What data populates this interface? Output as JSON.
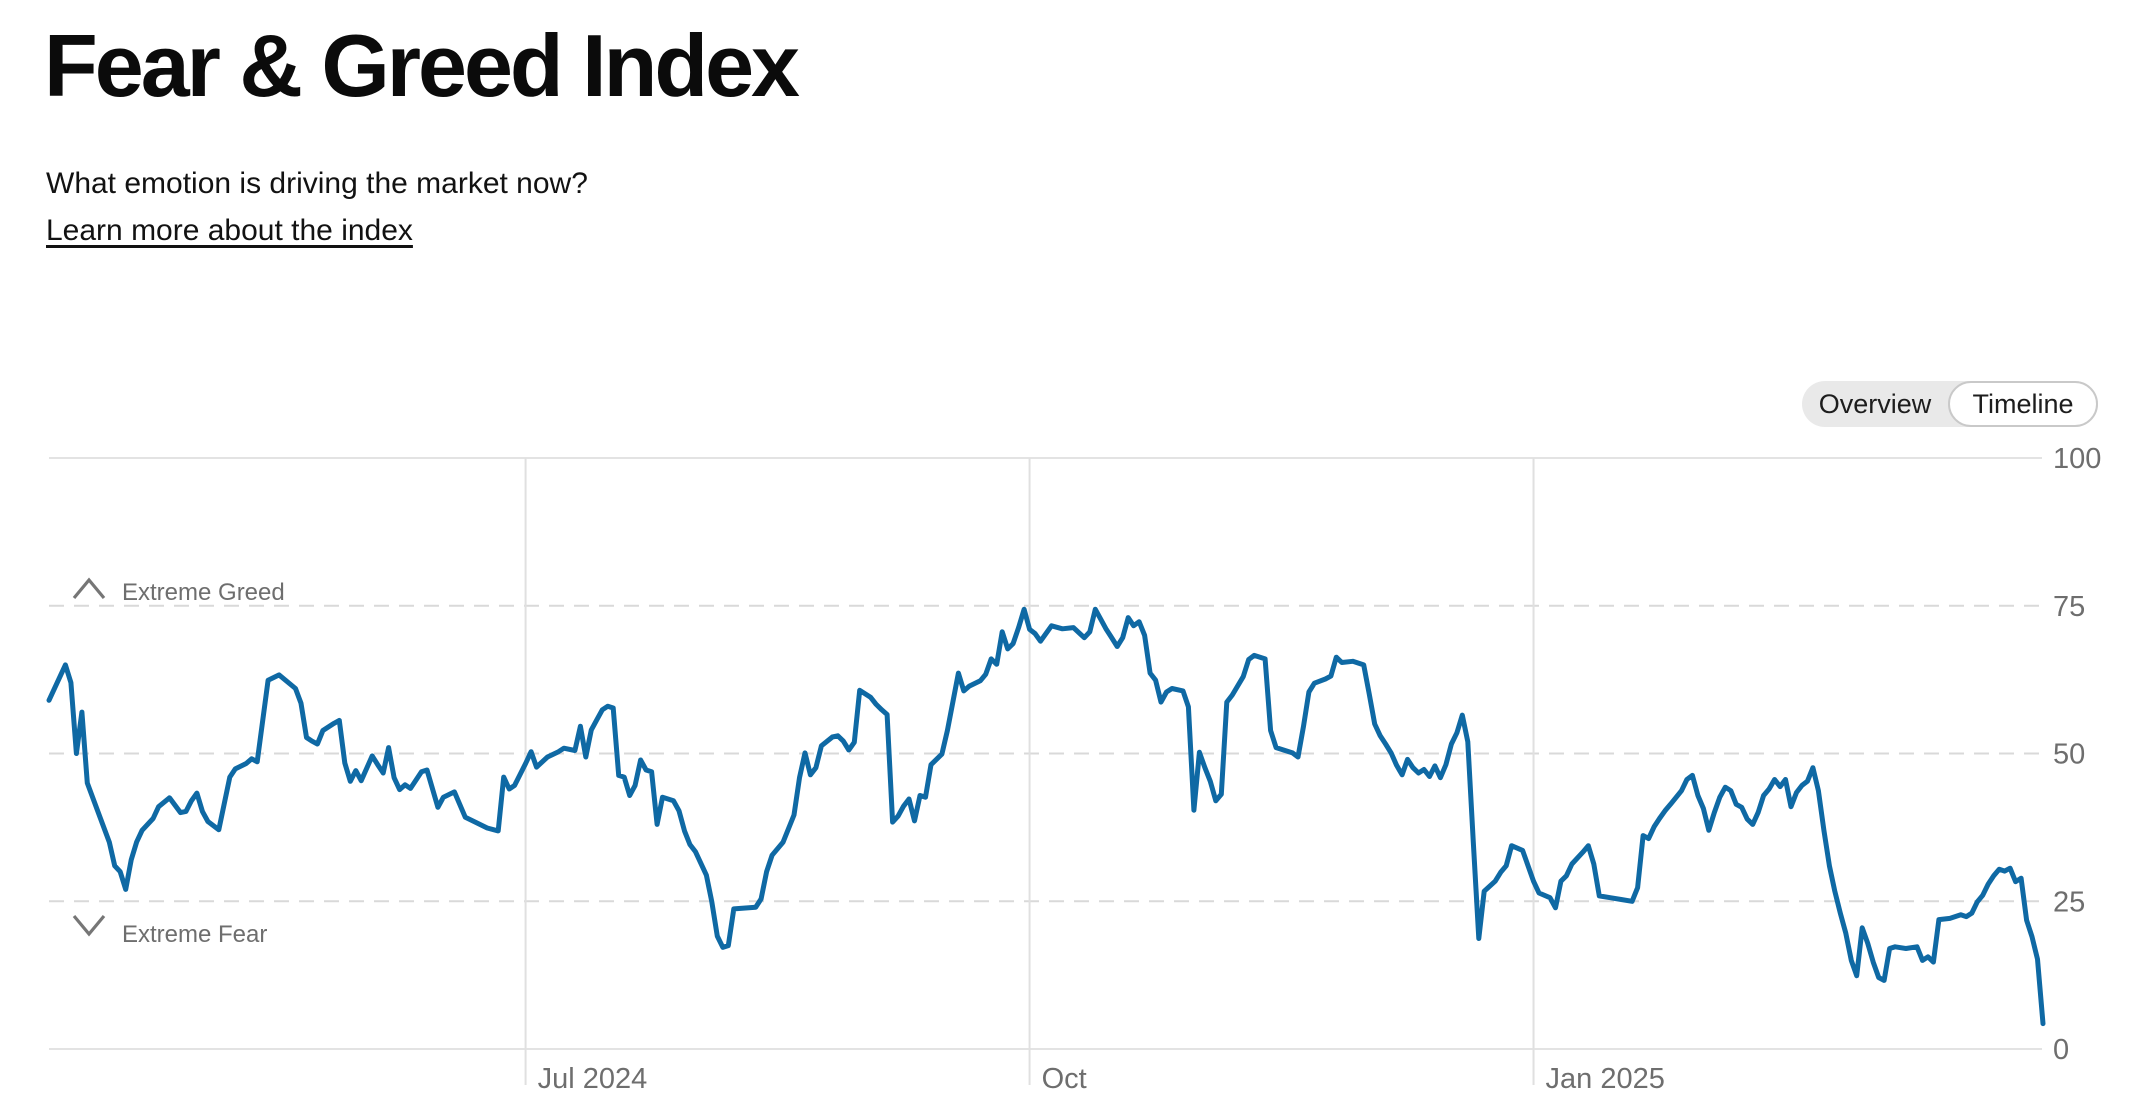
{
  "page": {
    "title": "Fear & Greed Index",
    "subtitle": "What emotion is driving the market now?",
    "link_label": "Learn more about the index"
  },
  "view_toggle": {
    "options": [
      "Overview",
      "Timeline"
    ],
    "selected": "Timeline"
  },
  "colors": {
    "line": "#0F69A4",
    "grid_solid": "#e3e3e3",
    "grid_vertical": "#e0e0e0",
    "grid_dashed": "#d9d9d9",
    "axis_text": "#6e6e6e",
    "zone_icon": "#767676",
    "toggle_bg": "#e9e9e9",
    "toggle_selected_border": "#c9c9c9"
  },
  "chart_data": {
    "type": "line",
    "title": "Fear & Greed Index over time",
    "series_name": "Fear & Greed Index",
    "xlim": [
      "2024-04-05",
      "2025-04-04"
    ],
    "ylim": [
      0,
      100
    ],
    "yticks": [
      0,
      25,
      50,
      75,
      100
    ],
    "xticks": [
      {
        "date": "2024-07-01",
        "label": "Jul 2024"
      },
      {
        "date": "2024-10-01",
        "label": "Oct"
      },
      {
        "date": "2025-01-01",
        "label": "Jan 2025"
      }
    ],
    "zones": {
      "upper": {
        "label": "Extreme Greed",
        "threshold": 75
      },
      "lower": {
        "label": "Extreme Fear",
        "threshold": 25
      }
    },
    "grid": {
      "horizontal_dashed": [
        25,
        50,
        75
      ],
      "horizontal_solid": [
        0,
        100
      ],
      "legend": "none"
    },
    "points": [
      [
        "2024-04-05",
        59
      ],
      [
        "2024-04-08",
        65
      ],
      [
        "2024-04-09",
        62
      ],
      [
        "2024-04-10",
        50
      ],
      [
        "2024-04-11",
        57
      ],
      [
        "2024-04-12",
        45
      ],
      [
        "2024-04-14",
        40
      ],
      [
        "2024-04-16",
        35
      ],
      [
        "2024-04-17",
        31
      ],
      [
        "2024-04-18",
        30
      ],
      [
        "2024-04-19",
        27
      ],
      [
        "2024-04-20",
        32
      ],
      [
        "2024-04-21",
        35
      ],
      [
        "2024-04-22",
        37
      ],
      [
        "2024-04-24",
        39
      ],
      [
        "2024-04-25",
        41
      ],
      [
        "2024-04-27",
        42.5
      ],
      [
        "2024-04-29",
        40
      ],
      [
        "2024-04-30",
        40.2
      ],
      [
        "2024-05-01",
        42
      ],
      [
        "2024-05-02",
        43.3
      ],
      [
        "2024-05-03",
        40.2
      ],
      [
        "2024-05-04",
        38.5
      ],
      [
        "2024-05-06",
        37.1
      ],
      [
        "2024-05-08",
        46
      ],
      [
        "2024-05-09",
        47.4
      ],
      [
        "2024-05-11",
        48.3
      ],
      [
        "2024-05-12",
        49.1
      ],
      [
        "2024-05-13",
        48.6
      ],
      [
        "2024-05-15",
        62.4
      ],
      [
        "2024-05-17",
        63.3
      ],
      [
        "2024-05-20",
        61
      ],
      [
        "2024-05-21",
        58.5
      ],
      [
        "2024-05-22",
        52.7
      ],
      [
        "2024-05-23",
        52.1
      ],
      [
        "2024-05-24",
        51.6
      ],
      [
        "2024-05-25",
        53.9
      ],
      [
        "2024-05-27",
        55.1
      ],
      [
        "2024-05-28",
        55.6
      ],
      [
        "2024-05-29",
        48.4
      ],
      [
        "2024-05-30",
        45.3
      ],
      [
        "2024-05-31",
        47.1
      ],
      [
        "2024-06-01",
        45.4
      ],
      [
        "2024-06-03",
        49.6
      ],
      [
        "2024-06-04",
        48.1
      ],
      [
        "2024-06-05",
        46.7
      ],
      [
        "2024-06-06",
        51
      ],
      [
        "2024-06-07",
        45.9
      ],
      [
        "2024-06-08",
        43.9
      ],
      [
        "2024-06-09",
        44.7
      ],
      [
        "2024-06-10",
        44.1
      ],
      [
        "2024-06-12",
        46.9
      ],
      [
        "2024-06-13",
        47.2
      ],
      [
        "2024-06-15",
        40.9
      ],
      [
        "2024-06-16",
        42.6
      ],
      [
        "2024-06-18",
        43.5
      ],
      [
        "2024-06-20",
        39.2
      ],
      [
        "2024-06-22",
        38.3
      ],
      [
        "2024-06-24",
        37.4
      ],
      [
        "2024-06-26",
        36.9
      ],
      [
        "2024-06-27",
        46
      ],
      [
        "2024-06-28",
        44
      ],
      [
        "2024-06-29",
        44.6
      ],
      [
        "2024-07-01",
        48.3
      ],
      [
        "2024-07-02",
        50.3
      ],
      [
        "2024-07-03",
        47.7
      ],
      [
        "2024-07-05",
        49.4
      ],
      [
        "2024-07-07",
        50.3
      ],
      [
        "2024-07-08",
        50.9
      ],
      [
        "2024-07-10",
        50.5
      ],
      [
        "2024-07-11",
        54.6
      ],
      [
        "2024-07-12",
        49.4
      ],
      [
        "2024-07-13",
        54
      ],
      [
        "2024-07-14",
        55.7
      ],
      [
        "2024-07-15",
        57.4
      ],
      [
        "2024-07-16",
        58
      ],
      [
        "2024-07-17",
        57.7
      ],
      [
        "2024-07-18",
        46.3
      ],
      [
        "2024-07-19",
        46
      ],
      [
        "2024-07-20",
        42.9
      ],
      [
        "2024-07-21",
        44.6
      ],
      [
        "2024-07-22",
        48.9
      ],
      [
        "2024-07-23",
        47.2
      ],
      [
        "2024-07-24",
        46.9
      ],
      [
        "2024-07-25",
        38
      ],
      [
        "2024-07-26",
        42.6
      ],
      [
        "2024-07-28",
        42
      ],
      [
        "2024-07-29",
        40.3
      ],
      [
        "2024-07-30",
        36.9
      ],
      [
        "2024-07-31",
        34.6
      ],
      [
        "2024-08-01",
        33.4
      ],
      [
        "2024-08-03",
        29.4
      ],
      [
        "2024-08-04",
        24.9
      ],
      [
        "2024-08-05",
        19.1
      ],
      [
        "2024-08-06",
        17.2
      ],
      [
        "2024-08-07",
        17.5
      ],
      [
        "2024-08-08",
        23.7
      ],
      [
        "2024-08-12",
        24
      ],
      [
        "2024-08-13",
        25.4
      ],
      [
        "2024-08-14",
        30
      ],
      [
        "2024-08-15",
        32.8
      ],
      [
        "2024-08-17",
        35
      ],
      [
        "2024-08-19",
        39.6
      ],
      [
        "2024-08-20",
        45.9
      ],
      [
        "2024-08-21",
        50.1
      ],
      [
        "2024-08-22",
        46.4
      ],
      [
        "2024-08-23",
        47.6
      ],
      [
        "2024-08-24",
        51.3
      ],
      [
        "2024-08-26",
        52.8
      ],
      [
        "2024-08-27",
        53
      ],
      [
        "2024-08-28",
        52.1
      ],
      [
        "2024-08-29",
        50.6
      ],
      [
        "2024-08-30",
        51.9
      ],
      [
        "2024-08-31",
        60.7
      ],
      [
        "2024-09-02",
        59.5
      ],
      [
        "2024-09-03",
        58.3
      ],
      [
        "2024-09-04",
        57.4
      ],
      [
        "2024-09-05",
        56.6
      ],
      [
        "2024-09-06",
        38.4
      ],
      [
        "2024-09-07",
        39.4
      ],
      [
        "2024-09-08",
        41.1
      ],
      [
        "2024-09-09",
        42.3
      ],
      [
        "2024-09-10",
        38.6
      ],
      [
        "2024-09-11",
        42.9
      ],
      [
        "2024-09-12",
        42.6
      ],
      [
        "2024-09-13",
        48.1
      ],
      [
        "2024-09-15",
        49.9
      ],
      [
        "2024-09-16",
        53.9
      ],
      [
        "2024-09-18",
        63.6
      ],
      [
        "2024-09-19",
        60.6
      ],
      [
        "2024-09-20",
        61.4
      ],
      [
        "2024-09-22",
        62.3
      ],
      [
        "2024-09-23",
        63.4
      ],
      [
        "2024-09-24",
        66
      ],
      [
        "2024-09-25",
        65.1
      ],
      [
        "2024-09-26",
        70.6
      ],
      [
        "2024-09-27",
        67.7
      ],
      [
        "2024-09-28",
        68.6
      ],
      [
        "2024-09-29",
        71.3
      ],
      [
        "2024-09-30",
        74.4
      ],
      [
        "2024-10-01",
        71
      ],
      [
        "2024-10-02",
        70.3
      ],
      [
        "2024-10-03",
        69
      ],
      [
        "2024-10-05",
        71.6
      ],
      [
        "2024-10-07",
        71.1
      ],
      [
        "2024-10-09",
        71.3
      ],
      [
        "2024-10-11",
        69.6
      ],
      [
        "2024-10-12",
        70.6
      ],
      [
        "2024-10-13",
        74.4
      ],
      [
        "2024-10-14",
        72.7
      ],
      [
        "2024-10-15",
        71
      ],
      [
        "2024-10-16",
        69.6
      ],
      [
        "2024-10-17",
        68.1
      ],
      [
        "2024-10-18",
        69.6
      ],
      [
        "2024-10-19",
        73
      ],
      [
        "2024-10-20",
        71.6
      ],
      [
        "2024-10-21",
        72.3
      ],
      [
        "2024-10-22",
        70
      ],
      [
        "2024-10-23",
        63.6
      ],
      [
        "2024-10-24",
        62.4
      ],
      [
        "2024-10-25",
        58.7
      ],
      [
        "2024-10-26",
        60.4
      ],
      [
        "2024-10-27",
        61
      ],
      [
        "2024-10-29",
        60.6
      ],
      [
        "2024-10-30",
        57.9
      ],
      [
        "2024-10-31",
        40.4
      ],
      [
        "2024-11-01",
        50.2
      ],
      [
        "2024-11-02",
        47.6
      ],
      [
        "2024-11-03",
        45.3
      ],
      [
        "2024-11-04",
        42
      ],
      [
        "2024-11-05",
        43.1
      ],
      [
        "2024-11-06",
        58.7
      ],
      [
        "2024-11-07",
        59.9
      ],
      [
        "2024-11-09",
        63
      ],
      [
        "2024-11-10",
        65.9
      ],
      [
        "2024-11-11",
        66.6
      ],
      [
        "2024-11-13",
        66
      ],
      [
        "2024-11-14",
        53.9
      ],
      [
        "2024-11-15",
        51
      ],
      [
        "2024-11-16",
        50.7
      ],
      [
        "2024-11-18",
        50.1
      ],
      [
        "2024-11-19",
        49.4
      ],
      [
        "2024-11-20",
        54.6
      ],
      [
        "2024-11-21",
        60.4
      ],
      [
        "2024-11-22",
        61.9
      ],
      [
        "2024-11-24",
        62.6
      ],
      [
        "2024-11-25",
        63.1
      ],
      [
        "2024-11-26",
        66.3
      ],
      [
        "2024-11-27",
        65.4
      ],
      [
        "2024-11-29",
        65.6
      ],
      [
        "2024-12-01",
        65
      ],
      [
        "2024-12-02",
        60.1
      ],
      [
        "2024-12-03",
        55
      ],
      [
        "2024-12-04",
        53
      ],
      [
        "2024-12-05",
        51.6
      ],
      [
        "2024-12-06",
        50.1
      ],
      [
        "2024-12-07",
        48
      ],
      [
        "2024-12-08",
        46.4
      ],
      [
        "2024-12-09",
        49
      ],
      [
        "2024-12-10",
        47.6
      ],
      [
        "2024-12-11",
        46.7
      ],
      [
        "2024-12-12",
        47.3
      ],
      [
        "2024-12-13",
        46.1
      ],
      [
        "2024-12-14",
        47.9
      ],
      [
        "2024-12-15",
        45.9
      ],
      [
        "2024-12-16",
        48.1
      ],
      [
        "2024-12-17",
        51.6
      ],
      [
        "2024-12-18",
        53.5
      ],
      [
        "2024-12-19",
        56.5
      ],
      [
        "2024-12-20",
        52
      ],
      [
        "2024-12-21",
        35
      ],
      [
        "2024-12-22",
        18.7
      ],
      [
        "2024-12-23",
        26.7
      ],
      [
        "2024-12-25",
        28.4
      ],
      [
        "2024-12-26",
        29.9
      ],
      [
        "2024-12-27",
        31
      ],
      [
        "2024-12-28",
        34.4
      ],
      [
        "2024-12-30",
        33.6
      ],
      [
        "2025-01-01",
        28.4
      ],
      [
        "2025-01-02",
        26.4
      ],
      [
        "2025-01-04",
        25.6
      ],
      [
        "2025-01-05",
        23.9
      ],
      [
        "2025-01-06",
        28.4
      ],
      [
        "2025-01-07",
        29.3
      ],
      [
        "2025-01-08",
        31.3
      ],
      [
        "2025-01-10",
        33.3
      ],
      [
        "2025-01-11",
        34.4
      ],
      [
        "2025-01-12",
        31.3
      ],
      [
        "2025-01-13",
        25.9
      ],
      [
        "2025-01-15",
        25.6
      ],
      [
        "2025-01-17",
        25.3
      ],
      [
        "2025-01-19",
        25
      ],
      [
        "2025-01-20",
        27.3
      ],
      [
        "2025-01-21",
        36.1
      ],
      [
        "2025-01-22",
        35.6
      ],
      [
        "2025-01-23",
        37.6
      ],
      [
        "2025-01-24",
        39
      ],
      [
        "2025-01-25",
        40.3
      ],
      [
        "2025-01-26",
        41.4
      ],
      [
        "2025-01-28",
        43.7
      ],
      [
        "2025-01-29",
        45.6
      ],
      [
        "2025-01-30",
        46.3
      ],
      [
        "2025-01-31",
        42.9
      ],
      [
        "2025-02-01",
        40.7
      ],
      [
        "2025-02-02",
        37
      ],
      [
        "2025-02-03",
        40
      ],
      [
        "2025-02-04",
        42.6
      ],
      [
        "2025-02-05",
        44.3
      ],
      [
        "2025-02-06",
        43.7
      ],
      [
        "2025-02-07",
        41.4
      ],
      [
        "2025-02-08",
        40.9
      ],
      [
        "2025-02-09",
        38.9
      ],
      [
        "2025-02-10",
        38
      ],
      [
        "2025-02-11",
        40
      ],
      [
        "2025-02-12",
        42.9
      ],
      [
        "2025-02-13",
        44
      ],
      [
        "2025-02-14",
        45.6
      ],
      [
        "2025-02-15",
        44.4
      ],
      [
        "2025-02-16",
        45.6
      ],
      [
        "2025-02-17",
        41
      ],
      [
        "2025-02-18",
        43.4
      ],
      [
        "2025-02-19",
        44.6
      ],
      [
        "2025-02-20",
        45.3
      ],
      [
        "2025-02-21",
        47.6
      ],
      [
        "2025-02-22",
        43.7
      ],
      [
        "2025-02-23",
        37
      ],
      [
        "2025-02-24",
        31
      ],
      [
        "2025-02-25",
        26.7
      ],
      [
        "2025-02-26",
        23
      ],
      [
        "2025-02-27",
        19.6
      ],
      [
        "2025-02-28",
        15
      ],
      [
        "2025-03-01",
        12.4
      ],
      [
        "2025-03-02",
        20.5
      ],
      [
        "2025-03-03",
        17.9
      ],
      [
        "2025-03-04",
        14.7
      ],
      [
        "2025-03-05",
        12.1
      ],
      [
        "2025-03-06",
        11.6
      ],
      [
        "2025-03-07",
        17
      ],
      [
        "2025-03-08",
        17.3
      ],
      [
        "2025-03-10",
        17
      ],
      [
        "2025-03-12",
        17.3
      ],
      [
        "2025-03-13",
        15
      ],
      [
        "2025-03-14",
        15.6
      ],
      [
        "2025-03-15",
        14.7
      ],
      [
        "2025-03-16",
        21.9
      ],
      [
        "2025-03-18",
        22.1
      ],
      [
        "2025-03-20",
        22.7
      ],
      [
        "2025-03-21",
        22.4
      ],
      [
        "2025-03-22",
        23
      ],
      [
        "2025-03-23",
        24.9
      ],
      [
        "2025-03-24",
        26
      ],
      [
        "2025-03-25",
        27.9
      ],
      [
        "2025-03-26",
        29.3
      ],
      [
        "2025-03-27",
        30.4
      ],
      [
        "2025-03-28",
        30.1
      ],
      [
        "2025-03-29",
        30.6
      ],
      [
        "2025-03-30",
        28.3
      ],
      [
        "2025-03-31",
        28.9
      ],
      [
        "2025-04-01",
        21.8
      ],
      [
        "2025-04-02",
        19
      ],
      [
        "2025-04-03",
        15.2
      ],
      [
        "2025-04-04",
        4.3
      ]
    ]
  }
}
